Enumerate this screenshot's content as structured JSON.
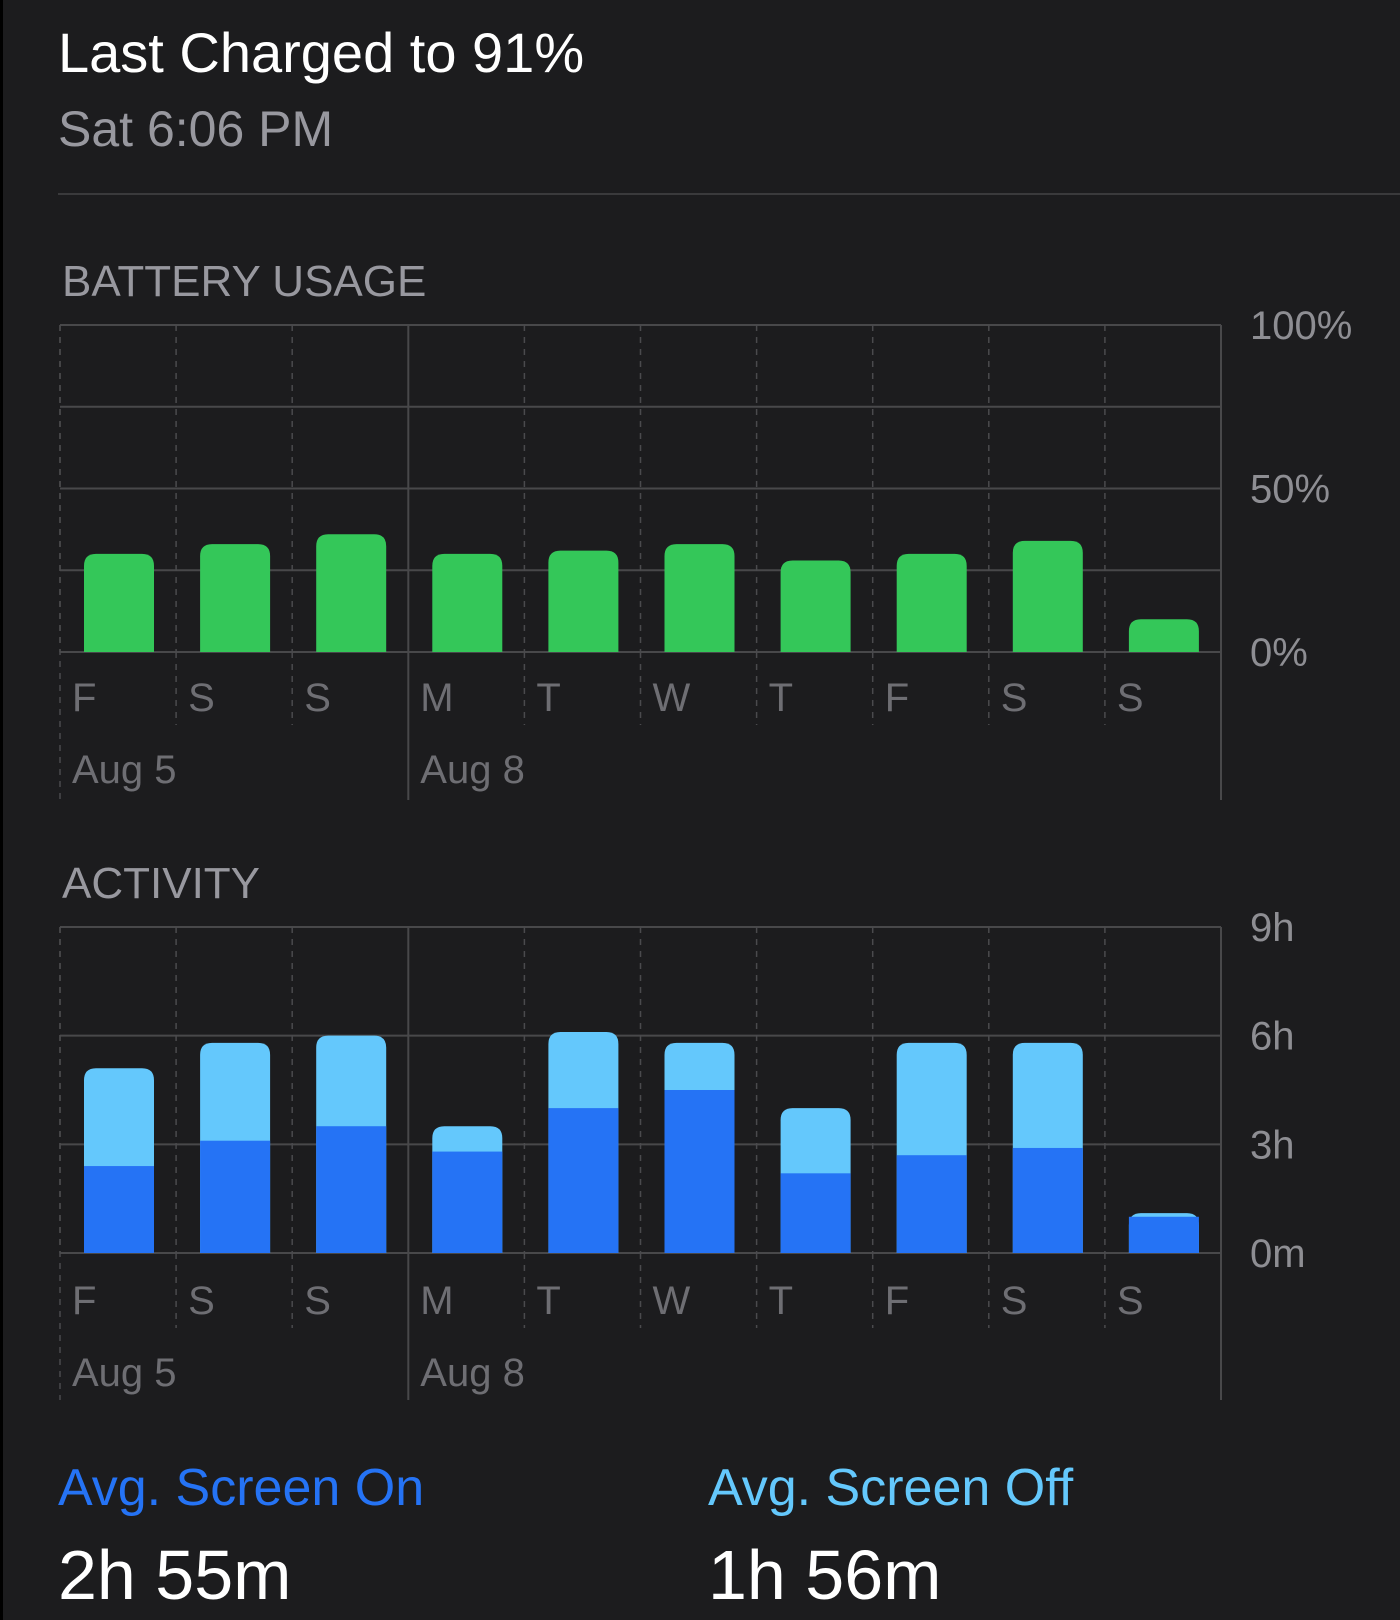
{
  "header": {
    "title": "Last Charged to 91%",
    "subtitle": "Sat 6:06 PM"
  },
  "colors": {
    "background": "#1c1c1e",
    "battery_green": "#34c759",
    "screen_on_blue": "#2573f5",
    "screen_off_blue": "#64c8fc",
    "label_gray": "#98989f"
  },
  "battery": {
    "section_title": "BATTERY USAGE",
    "chart_data": {
      "type": "bar",
      "categories": [
        "F",
        "S",
        "S",
        "M",
        "T",
        "W",
        "T",
        "F",
        "S",
        "S"
      ],
      "values": [
        30,
        33,
        36,
        30,
        31,
        33,
        28,
        30,
        34,
        10
      ],
      "ylim": [
        0,
        100
      ],
      "yticks": [
        0,
        50,
        100
      ],
      "ytick_labels": [
        "0%",
        "50%",
        "100%"
      ],
      "gridlines": [
        0,
        25,
        50,
        75,
        100
      ],
      "date_labels": [
        {
          "label": "Aug 5",
          "index": 0
        },
        {
          "label": "Aug 8",
          "index": 3
        }
      ],
      "color": "#34c759"
    }
  },
  "activity": {
    "section_title": "ACTIVITY",
    "chart_data": {
      "type": "bar",
      "stacked": true,
      "categories": [
        "F",
        "S",
        "S",
        "M",
        "T",
        "W",
        "T",
        "F",
        "S",
        "S"
      ],
      "series": [
        {
          "values": [
            2.4,
            3.1,
            3.5,
            2.8,
            4.0,
            4.5,
            2.2,
            2.7,
            2.9,
            1.0
          ],
          "color": "#2573f5"
        },
        {
          "values": [
            2.7,
            2.7,
            2.5,
            0.7,
            2.1,
            1.3,
            1.8,
            3.1,
            2.9,
            0.1
          ],
          "color": "#64c8fc"
        }
      ],
      "ylim": [
        0,
        9
      ],
      "yticks": [
        0,
        3,
        6,
        9
      ],
      "ytick_labels": [
        "0m",
        "3h",
        "6h",
        "9h"
      ],
      "date_labels": [
        {
          "label": "Aug 5",
          "index": 0
        },
        {
          "label": "Aug 8",
          "index": 3
        }
      ]
    }
  },
  "stats": {
    "screen_on_label": "Avg. Screen On",
    "screen_on_value": "2h 55m",
    "screen_off_label": "Avg. Screen Off",
    "screen_off_value": "1h 56m"
  }
}
